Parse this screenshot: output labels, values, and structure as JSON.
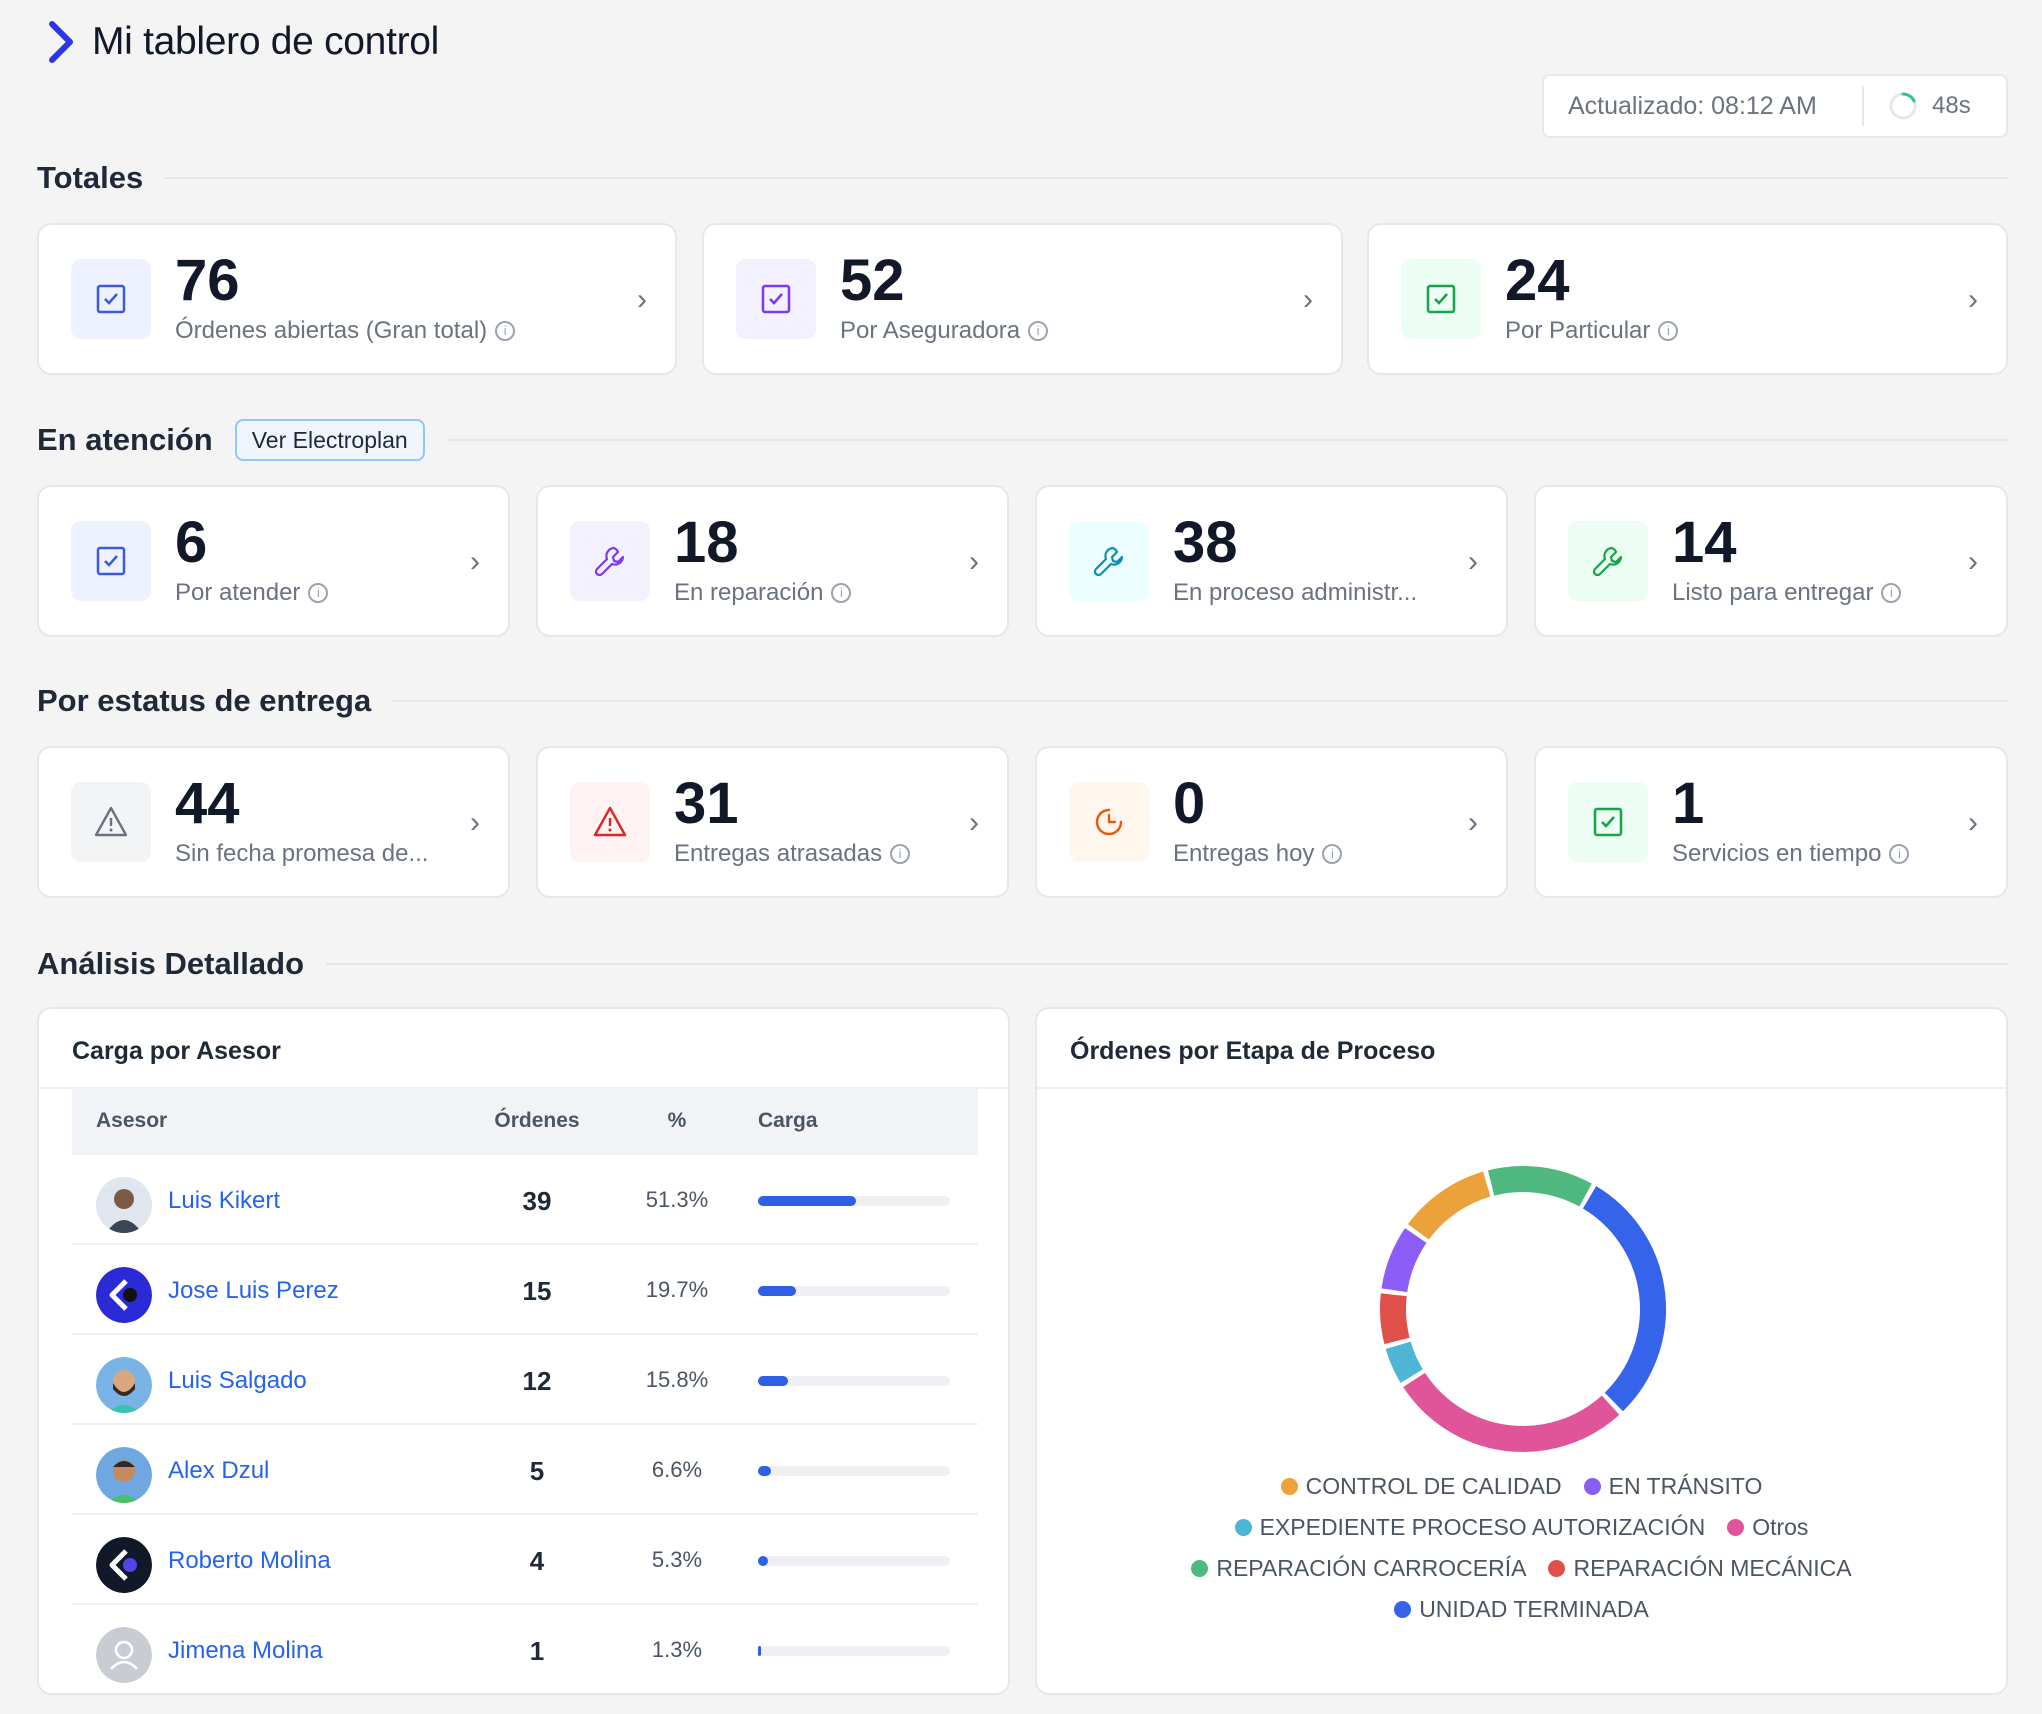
{
  "header": {
    "title": "Mi tablero de control"
  },
  "refresh": {
    "updated": "Actualizado: 08:12 AM",
    "countdown": "48s"
  },
  "sections": {
    "totales": "Totales",
    "atencion": "En atención",
    "atencion_button": "Ver Electroplan",
    "entrega": "Por estatus de entrega",
    "analisis": "Análisis Detallado"
  },
  "totales": [
    {
      "value": "76",
      "label": "Órdenes abiertas (Gran total)",
      "icon": "check-square-icon",
      "color": "#3b5bdb"
    },
    {
      "value": "52",
      "label": "Por Aseguradora",
      "icon": "check-square-icon",
      "color": "#7c3aed"
    },
    {
      "value": "24",
      "label": "Por Particular",
      "icon": "check-square-icon",
      "color": "#16a34a"
    }
  ],
  "atencion": [
    {
      "value": "6",
      "label": "Por atender",
      "icon": "check-square-icon",
      "color": "#3b5bdb"
    },
    {
      "value": "18",
      "label": "En reparación",
      "icon": "wrench-icon",
      "color": "#7c3aed"
    },
    {
      "value": "38",
      "label": "En proceso administr...",
      "icon": "wrench-icon",
      "color": "#0891b2"
    },
    {
      "value": "14",
      "label": "Listo para entregar",
      "icon": "wrench-icon",
      "color": "#16a34a"
    }
  ],
  "entrega": [
    {
      "value": "44",
      "label": "Sin fecha promesa de...",
      "icon": "warning-icon",
      "color": "#6b7280"
    },
    {
      "value": "31",
      "label": "Entregas atrasadas",
      "icon": "warning-icon",
      "color": "#dc2626"
    },
    {
      "value": "0",
      "label": "Entregas hoy",
      "icon": "clock-icon",
      "color": "#ea580c"
    },
    {
      "value": "1",
      "label": "Servicios en tiempo",
      "icon": "check-square-icon",
      "color": "#16a34a"
    }
  ],
  "advisors": {
    "title": "Carga por Asesor",
    "columns": [
      "Asesor",
      "Órdenes",
      "%",
      "Carga"
    ],
    "rows": [
      {
        "name": "Luis Kikert",
        "orders": "39",
        "pct": "51.3%",
        "load": 0.513
      },
      {
        "name": "Jose Luis Perez",
        "orders": "15",
        "pct": "19.7%",
        "load": 0.197
      },
      {
        "name": "Luis Salgado",
        "orders": "12",
        "pct": "15.8%",
        "load": 0.158
      },
      {
        "name": "Alex Dzul",
        "orders": "5",
        "pct": "6.6%",
        "load": 0.066
      },
      {
        "name": "Roberto Molina",
        "orders": "4",
        "pct": "5.3%",
        "load": 0.053
      },
      {
        "name": "Jimena Molina",
        "orders": "1",
        "pct": "1.3%",
        "load": 0.013
      }
    ]
  },
  "stages": {
    "title": "Órdenes por Etapa de Proceso",
    "chart_data": {
      "type": "pie",
      "labels": [
        "UNIDAD TERMINADA",
        "Otros",
        "EXPEDIENTE PROCESO AUTORIZACIÓN",
        "REPARACIÓN MECÁNICA",
        "EN TRÁNSITO",
        "CONTROL DE CALIDAD",
        "REPARACIÓN CARROCERÍA"
      ],
      "values": [
        19,
        18,
        3,
        4,
        5,
        7,
        8
      ],
      "colors": [
        "#3563e9",
        "#e0559a",
        "#4eb5d6",
        "#e0504a",
        "#8b5cf6",
        "#eca23b",
        "#4fb87f"
      ]
    },
    "legend": [
      {
        "label": "CONTROL DE CALIDAD",
        "color": "#eca23b"
      },
      {
        "label": "EN TRÁNSITO",
        "color": "#8b5cf6"
      },
      {
        "label": "EXPEDIENTE PROCESO AUTORIZACIÓN",
        "color": "#4eb5d6"
      },
      {
        "label": "Otros",
        "color": "#e0559a"
      },
      {
        "label": "REPARACIÓN CARROCERÍA",
        "color": "#4fb87f"
      },
      {
        "label": "REPARACIÓN MECÁNICA",
        "color": "#e0504a"
      },
      {
        "label": "UNIDAD TERMINADA",
        "color": "#3563e9"
      }
    ]
  }
}
